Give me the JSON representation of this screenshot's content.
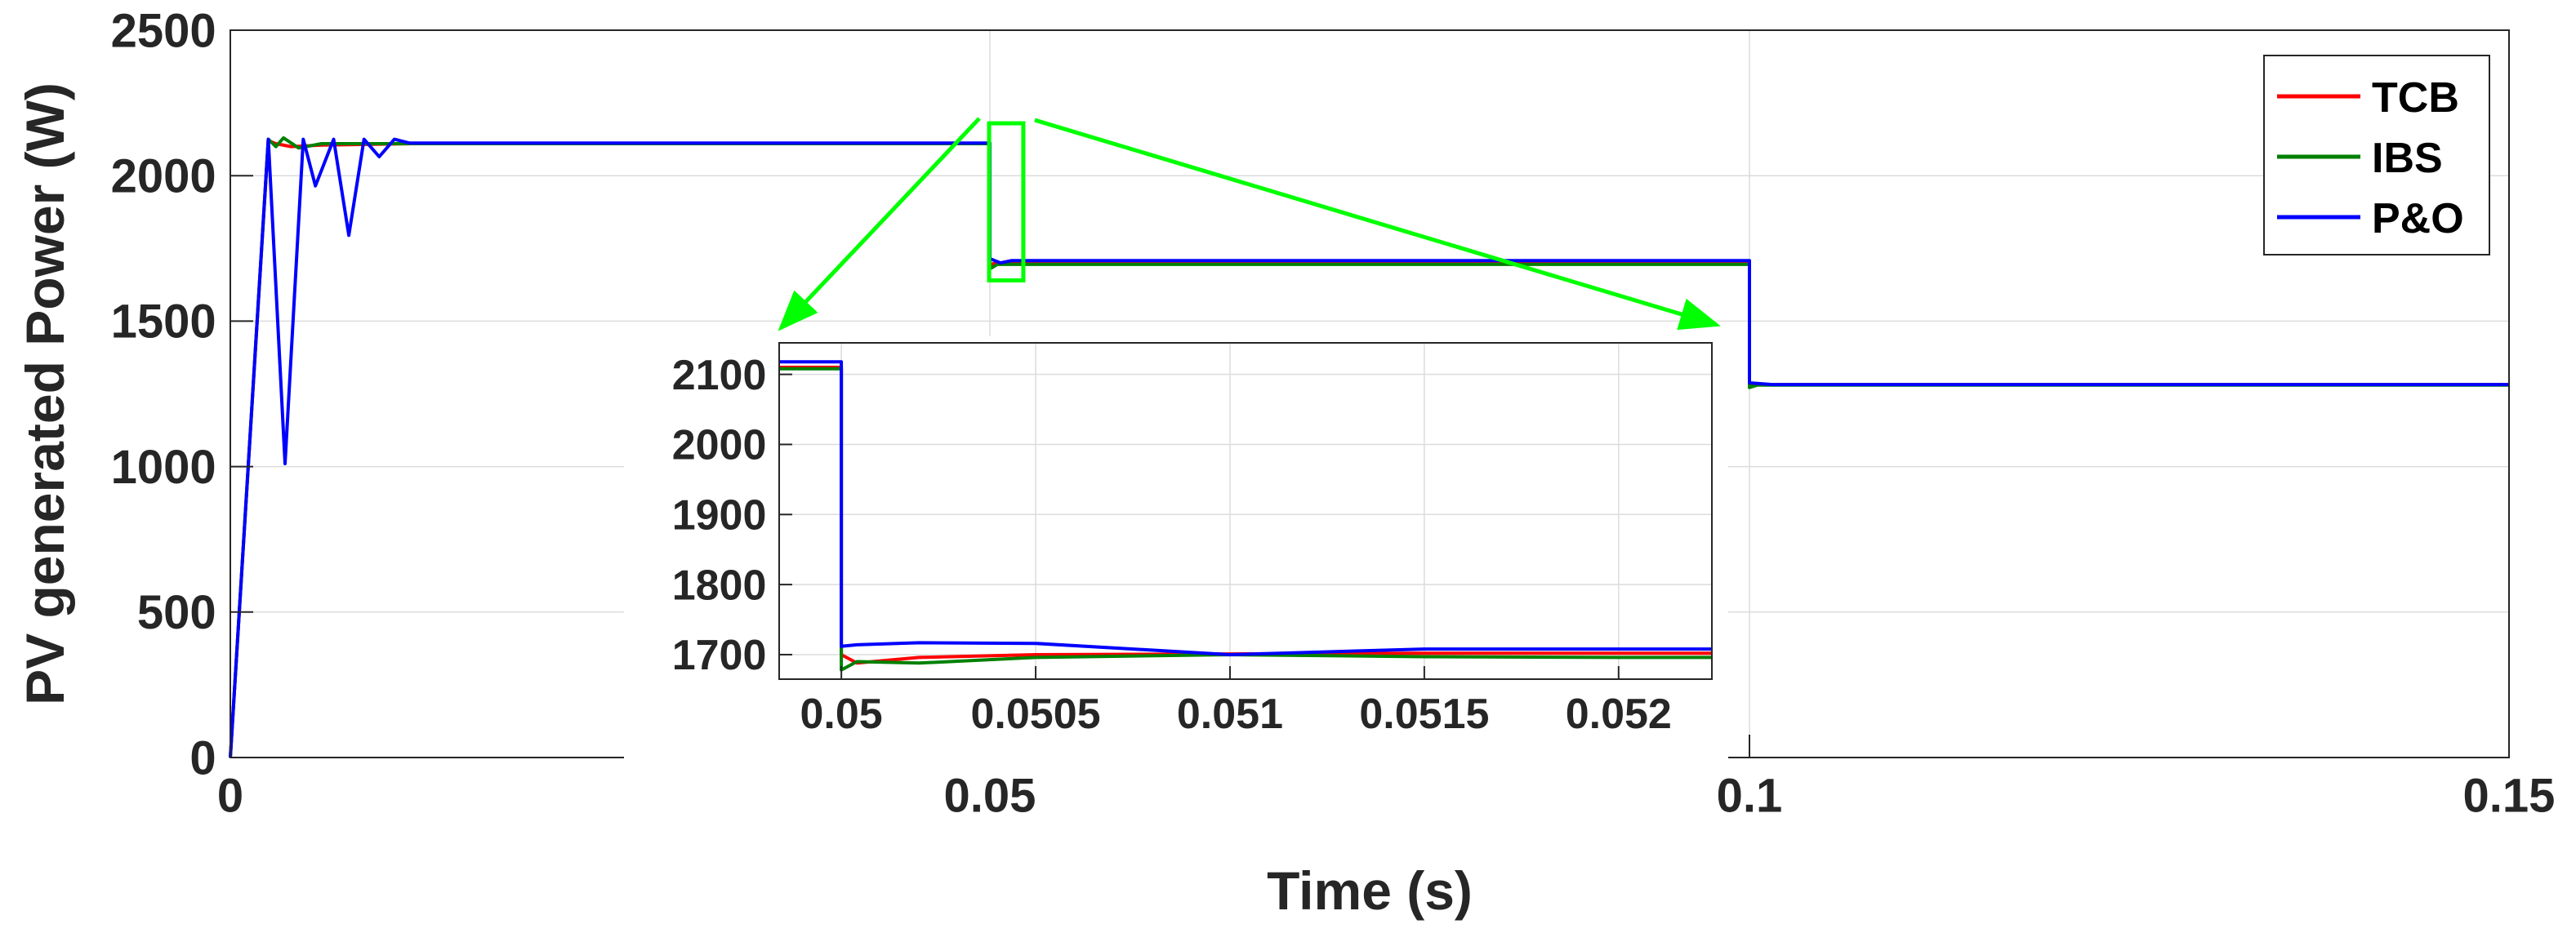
{
  "chart_data": [
    {
      "type": "line",
      "panel": "main",
      "title": "",
      "xlabel": "Time (s)",
      "ylabel": "PV generated Power (W)",
      "xlim": [
        0,
        0.15
      ],
      "ylim": [
        0,
        2500
      ],
      "xticks": [
        0,
        0.05,
        0.1,
        0.15
      ],
      "xtick_labels": [
        "0",
        "0.05",
        "0.1",
        "0.15"
      ],
      "yticks": [
        0,
        500,
        1000,
        1500,
        2000,
        2500
      ],
      "ytick_labels": [
        "0",
        "500",
        "1000",
        "1500",
        "2000",
        "2500"
      ],
      "grid": true,
      "legend_position": "top-right",
      "series": [
        {
          "name": "TCB",
          "color": "#ff0000",
          "x": [
            0,
            0.0025,
            0.003,
            0.004,
            0.006,
            0.012,
            0.05,
            0.05,
            0.0505,
            0.1,
            0.1,
            0.1005,
            0.15
          ],
          "y": [
            0,
            2120,
            2110,
            2100,
            2105,
            2110,
            2110,
            1695,
            1700,
            1700,
            1278,
            1282,
            1282
          ]
        },
        {
          "name": "IBS",
          "color": "#008000",
          "x": [
            0,
            0.0025,
            0.003,
            0.0035,
            0.0045,
            0.006,
            0.012,
            0.05,
            0.05,
            0.0505,
            0.1,
            0.1,
            0.1005,
            0.15
          ],
          "y": [
            0,
            2125,
            2100,
            2130,
            2095,
            2110,
            2110,
            2110,
            1680,
            1695,
            1695,
            1272,
            1280,
            1280
          ]
        },
        {
          "name": "P&O",
          "color": "#0000ff",
          "x": [
            0,
            0.0025,
            0.0036,
            0.0048,
            0.0056,
            0.0068,
            0.0078,
            0.0088,
            0.0098,
            0.0108,
            0.0118,
            0.05,
            0.05,
            0.0507,
            0.0514,
            0.052,
            0.1,
            0.1,
            0.1015,
            0.15
          ],
          "y": [
            0,
            2125,
            1010,
            2125,
            1965,
            2125,
            1795,
            2125,
            2065,
            2125,
            2112,
            2112,
            1715,
            1700,
            1708,
            1708,
            1708,
            1288,
            1282,
            1282
          ]
        }
      ],
      "annotations": [
        {
          "kind": "zoom-box",
          "color": "#00ff00",
          "x": [
            0.04995,
            0.0522
          ],
          "y": [
            1640,
            2180
          ]
        }
      ]
    },
    {
      "type": "line",
      "panel": "inset",
      "xlim": [
        0.04984,
        0.05224
      ],
      "ylim": [
        1665,
        2145
      ],
      "xticks": [
        0.05,
        0.0505,
        0.051,
        0.0515,
        0.052
      ],
      "xtick_labels": [
        "0.05",
        "0.0505",
        "0.051",
        "0.0515",
        "0.052"
      ],
      "yticks": [
        1700,
        1800,
        1900,
        2000,
        2100
      ],
      "ytick_labels": [
        "1700",
        "1800",
        "1900",
        "2000",
        "2100"
      ],
      "grid": true,
      "series": [
        {
          "name": "TCB",
          "color": "#ff0000",
          "x": [
            0.04984,
            0.05,
            0.05,
            0.05004,
            0.0502,
            0.0505,
            0.051,
            0.0515,
            0.052,
            0.05224
          ],
          "y": [
            2110,
            2110,
            1700,
            1688,
            1696,
            1700,
            1701,
            1702,
            1702,
            1702
          ]
        },
        {
          "name": "IBS",
          "color": "#008000",
          "x": [
            0.04984,
            0.05,
            0.05,
            0.05004,
            0.0502,
            0.0505,
            0.051,
            0.0515,
            0.052,
            0.05224
          ],
          "y": [
            2108,
            2108,
            1678,
            1690,
            1688,
            1696,
            1700,
            1697,
            1696,
            1696
          ]
        },
        {
          "name": "P&O",
          "color": "#0000ff",
          "x": [
            0.04984,
            0.05,
            0.05,
            0.05004,
            0.0502,
            0.0505,
            0.051,
            0.0515,
            0.052,
            0.05224
          ],
          "y": [
            2118,
            2118,
            1712,
            1714,
            1717,
            1716,
            1700,
            1708,
            1708,
            1708
          ]
        }
      ]
    }
  ]
}
